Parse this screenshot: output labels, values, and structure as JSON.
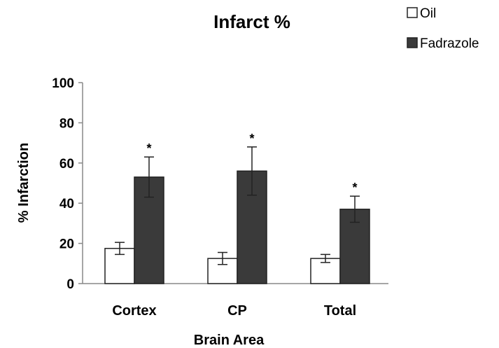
{
  "chart_data": {
    "type": "bar",
    "title": "Infarct %",
    "xlabel": "Brain Area",
    "ylabel": "% Infarction",
    "categories": [
      "Cortex",
      "CP",
      "Total"
    ],
    "ylim": [
      0,
      100
    ],
    "yticks": [
      0,
      20,
      40,
      60,
      80,
      100
    ],
    "grid": false,
    "legend_position": "top-right",
    "series": [
      {
        "name": "Oil",
        "color": "#ffffff",
        "values": [
          17.5,
          12.5,
          12.5
        ],
        "errors": [
          3,
          3,
          2
        ]
      },
      {
        "name": "Fadrazole",
        "color": "#3a3a3a",
        "values": [
          53,
          56,
          37
        ],
        "errors": [
          10,
          12,
          6.5
        ]
      }
    ],
    "significance": [
      {
        "series": "Fadrazole",
        "category": "Cortex",
        "label": "*"
      },
      {
        "series": "Fadrazole",
        "category": "CP",
        "label": "*"
      },
      {
        "series": "Fadrazole",
        "category": "Total",
        "label": "*"
      }
    ]
  }
}
